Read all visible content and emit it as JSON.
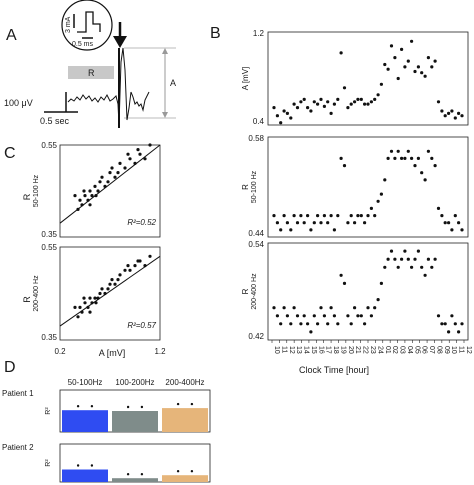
{
  "panels": {
    "A": "A",
    "B": "B",
    "C": "C",
    "D": "D"
  },
  "panel_a": {
    "pulse_amp": "3 mA",
    "pulse_dur": "0.5 ms",
    "r_label": "R",
    "a_label": "A",
    "scale_v": "100 μV",
    "scale_t": "0.5 sec"
  },
  "panel_b": {
    "xlabel": "Clock Time [hour]",
    "hours": [
      "10",
      "11",
      "12",
      "13",
      "14",
      "15",
      "16",
      "17",
      "18",
      "19",
      "20",
      "21",
      "22",
      "23",
      "24",
      "01",
      "02",
      "03",
      "04",
      "05",
      "06",
      "07",
      "08",
      "09",
      "10",
      "11",
      "12"
    ],
    "rows": [
      {
        "ylabel": "A [mV]",
        "sub": "",
        "ymin": "0.4",
        "ymax": "1.2"
      },
      {
        "ylabel": "R",
        "sub": "50-100 Hz",
        "ymin": "0.44",
        "ymax": "0.58"
      },
      {
        "ylabel": "R",
        "sub": "200-400 Hz",
        "ymin": "0.42",
        "ymax": "0.54"
      }
    ]
  },
  "panel_c": {
    "xlabel": "A [mV]",
    "x_ticks": [
      "0.2",
      "1.2"
    ],
    "plots": [
      {
        "ylabel": "R",
        "sub": "50-100 Hz",
        "ymin": "0.35",
        "ymax": "0.55",
        "r2": "R²=0.52"
      },
      {
        "ylabel": "R",
        "sub": "200-400 Hz",
        "ymin": "0.35",
        "ymax": "0.55",
        "r2": "R²=0.57"
      }
    ]
  },
  "panel_d": {
    "legend": [
      "50-100Hz",
      "100-200Hz",
      "200-400Hz"
    ],
    "ylabel": "R²",
    "patients": [
      "Patient 1",
      "Patient 2"
    ]
  },
  "colors": {
    "blue": "#2f4cf2",
    "gray": "#7f8c8a",
    "tan": "#e6b57a",
    "dot": "#111111"
  },
  "chart_data": [
    {
      "type": "scatter",
      "panel": "B",
      "title": "",
      "xlabel": "Clock Time [hour]",
      "series": [
        {
          "name": "A [mV]",
          "ylim": [
            0.4,
            1.2
          ],
          "values": [
            0.55,
            0.48,
            0.42,
            0.52,
            0.5,
            0.46,
            0.58,
            0.55,
            0.6,
            0.62,
            0.55,
            0.52,
            0.6,
            0.58,
            0.62,
            0.56,
            0.6,
            0.5,
            0.58,
            0.62,
            1.02,
            0.72,
            0.55,
            0.58,
            0.6,
            0.62,
            0.62,
            0.58,
            0.58,
            0.6,
            0.62,
            0.66,
            0.75,
            0.92,
            0.88,
            1.08,
            0.98,
            0.8,
            1.05,
            0.9,
            0.95,
            1.12,
            0.86,
            0.9,
            0.85,
            0.82,
            0.98,
            0.9,
            0.95,
            0.6,
            0.52,
            0.48,
            0.5,
            0.52,
            0.46,
            0.5,
            0.48
          ]
        },
        {
          "name": "R 50-100 Hz",
          "ylim": [
            0.44,
            0.58
          ],
          "values": [
            0.47,
            0.46,
            0.45,
            0.47,
            0.46,
            0.45,
            0.47,
            0.46,
            0.47,
            0.46,
            0.47,
            0.45,
            0.46,
            0.47,
            0.46,
            0.47,
            0.46,
            0.47,
            0.45,
            0.47,
            0.55,
            0.54,
            0.46,
            0.47,
            0.46,
            0.47,
            0.47,
            0.46,
            0.47,
            0.48,
            0.47,
            0.49,
            0.5,
            0.52,
            0.55,
            0.56,
            0.55,
            0.56,
            0.55,
            0.55,
            0.56,
            0.55,
            0.54,
            0.55,
            0.53,
            0.52,
            0.56,
            0.55,
            0.54,
            0.48,
            0.47,
            0.46,
            0.46,
            0.45,
            0.47,
            0.46,
            0.45
          ]
        },
        {
          "name": "R 200-400 Hz",
          "ylim": [
            0.42,
            0.54
          ],
          "values": [
            0.46,
            0.45,
            0.44,
            0.46,
            0.45,
            0.44,
            0.46,
            0.45,
            0.44,
            0.45,
            0.44,
            0.43,
            0.45,
            0.44,
            0.46,
            0.45,
            0.44,
            0.46,
            0.45,
            0.44,
            0.5,
            0.49,
            0.45,
            0.44,
            0.46,
            0.45,
            0.45,
            0.44,
            0.46,
            0.45,
            0.46,
            0.47,
            0.49,
            0.51,
            0.52,
            0.53,
            0.52,
            0.51,
            0.52,
            0.53,
            0.52,
            0.51,
            0.52,
            0.53,
            0.51,
            0.5,
            0.52,
            0.51,
            0.52,
            0.45,
            0.44,
            0.44,
            0.43,
            0.45,
            0.44,
            0.43,
            0.44
          ]
        }
      ]
    },
    {
      "type": "scatter",
      "panel": "C",
      "xlabel": "A [mV]",
      "xlim": [
        0.2,
        1.2
      ],
      "series": [
        {
          "name": "R 50-100 Hz",
          "ylim": [
            0.35,
            0.55
          ],
          "r2": 0.52,
          "fit": [
            [
              0.2,
              0.38
            ],
            [
              1.2,
              0.55
            ]
          ],
          "points": [
            [
              0.4,
              0.43
            ],
            [
              0.45,
              0.44
            ],
            [
              0.42,
              0.42
            ],
            [
              0.5,
              0.45
            ],
            [
              0.48,
              0.43
            ],
            [
              0.52,
              0.44
            ],
            [
              0.55,
              0.46
            ],
            [
              0.6,
              0.47
            ],
            [
              0.58,
              0.45
            ],
            [
              0.62,
              0.48
            ],
            [
              0.65,
              0.46
            ],
            [
              0.7,
              0.49
            ],
            [
              0.72,
              0.5
            ],
            [
              0.75,
              0.48
            ],
            [
              0.8,
              0.51
            ],
            [
              0.85,
              0.5
            ],
            [
              0.9,
              0.52
            ],
            [
              0.95,
              0.51
            ],
            [
              1.0,
              0.53
            ],
            [
              1.05,
              0.52
            ],
            [
              0.38,
              0.41
            ],
            [
              0.44,
              0.45
            ],
            [
              0.5,
              0.42
            ],
            [
              0.56,
              0.44
            ],
            [
              0.68,
              0.47
            ],
            [
              0.78,
              0.49
            ],
            [
              0.88,
              0.53
            ],
            [
              0.98,
              0.54
            ],
            [
              1.1,
              0.55
            ],
            [
              0.35,
              0.44
            ]
          ]
        },
        {
          "name": "R 200-400 Hz",
          "ylim": [
            0.35,
            0.55
          ],
          "r2": 0.57,
          "fit": [
            [
              0.2,
              0.38
            ],
            [
              1.2,
              0.53
            ]
          ],
          "points": [
            [
              0.4,
              0.42
            ],
            [
              0.45,
              0.43
            ],
            [
              0.42,
              0.41
            ],
            [
              0.5,
              0.44
            ],
            [
              0.48,
              0.42
            ],
            [
              0.52,
              0.43
            ],
            [
              0.55,
              0.44
            ],
            [
              0.6,
              0.45
            ],
            [
              0.58,
              0.44
            ],
            [
              0.62,
              0.46
            ],
            [
              0.65,
              0.45
            ],
            [
              0.7,
              0.47
            ],
            [
              0.72,
              0.48
            ],
            [
              0.75,
              0.47
            ],
            [
              0.8,
              0.49
            ],
            [
              0.85,
              0.5
            ],
            [
              0.9,
              0.5
            ],
            [
              0.95,
              0.51
            ],
            [
              1.0,
              0.52
            ],
            [
              1.05,
              0.51
            ],
            [
              0.38,
              0.4
            ],
            [
              0.44,
              0.44
            ],
            [
              0.5,
              0.41
            ],
            [
              0.56,
              0.43
            ],
            [
              0.68,
              0.46
            ],
            [
              0.78,
              0.48
            ],
            [
              0.88,
              0.51
            ],
            [
              0.98,
              0.52
            ],
            [
              1.1,
              0.53
            ],
            [
              0.35,
              0.42
            ]
          ]
        }
      ]
    },
    {
      "type": "bar",
      "panel": "D",
      "categories": [
        "50-100Hz",
        "100-200Hz",
        "200-400Hz"
      ],
      "ylabel": "R²",
      "series": [
        {
          "name": "Patient 1",
          "values": [
            0.52,
            0.5,
            0.57
          ]
        },
        {
          "name": "Patient 2",
          "values": [
            0.33,
            0.1,
            0.18
          ]
        }
      ]
    }
  ]
}
